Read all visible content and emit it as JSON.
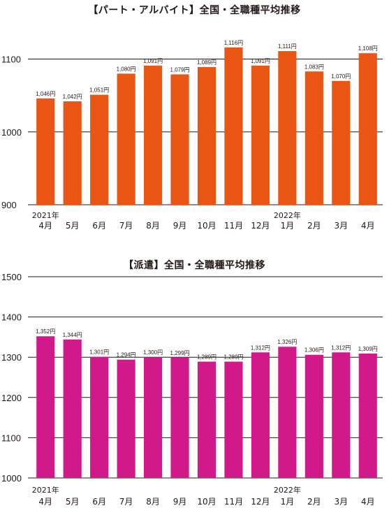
{
  "chart_data": [
    {
      "type": "bar",
      "title": "【パート・アルバイト】全国・全職種平均推移",
      "categories": [
        "4月",
        "5月",
        "6月",
        "7月",
        "8月",
        "9月",
        "10月",
        "11月",
        "12月",
        "1月",
        "2月",
        "3月",
        "4月"
      ],
      "year_labels": [
        {
          "index": 0,
          "text": "2021年"
        },
        {
          "index": 9,
          "text": "2022年"
        }
      ],
      "values": [
        1046,
        1042,
        1051,
        1080,
        1091,
        1079,
        1089,
        1116,
        1091,
        1111,
        1083,
        1070,
        1108
      ],
      "value_labels": [
        "1,046円",
        "1,042円",
        "1,051円",
        "1,080円",
        "1,091円",
        "1,079円",
        "1,089円",
        "1,116円",
        "1,091円",
        "1,111円",
        "1,083円",
        "1,070円",
        "1,108円"
      ],
      "yticks": [
        900,
        1000,
        1100
      ],
      "ylim": [
        900,
        1160
      ],
      "color": "#e95513",
      "grid": true
    },
    {
      "type": "bar",
      "title": "【派遣】全国・全職種平均推移",
      "categories": [
        "4月",
        "5月",
        "6月",
        "7月",
        "8月",
        "9月",
        "10月",
        "11月",
        "12月",
        "1月",
        "2月",
        "3月",
        "4月"
      ],
      "year_labels": [
        {
          "index": 0,
          "text": "2021年"
        },
        {
          "index": 9,
          "text": "2022年"
        }
      ],
      "values": [
        1352,
        1344,
        1301,
        1294,
        1300,
        1299,
        1289,
        1289,
        1312,
        1326,
        1306,
        1312,
        1309
      ],
      "value_labels": [
        "1,352円",
        "1,344円",
        "1,301円",
        "1,294円",
        "1,300円",
        "1,299円",
        "1,289円",
        "1,289円",
        "1,312円",
        "1,326円",
        "1,306円",
        "1,312円",
        "1,309円"
      ],
      "yticks": [
        1000,
        1100,
        1200,
        1300,
        1400,
        1500
      ],
      "ylim": [
        1000,
        1500
      ],
      "color": "#d1198a",
      "grid": true
    }
  ]
}
